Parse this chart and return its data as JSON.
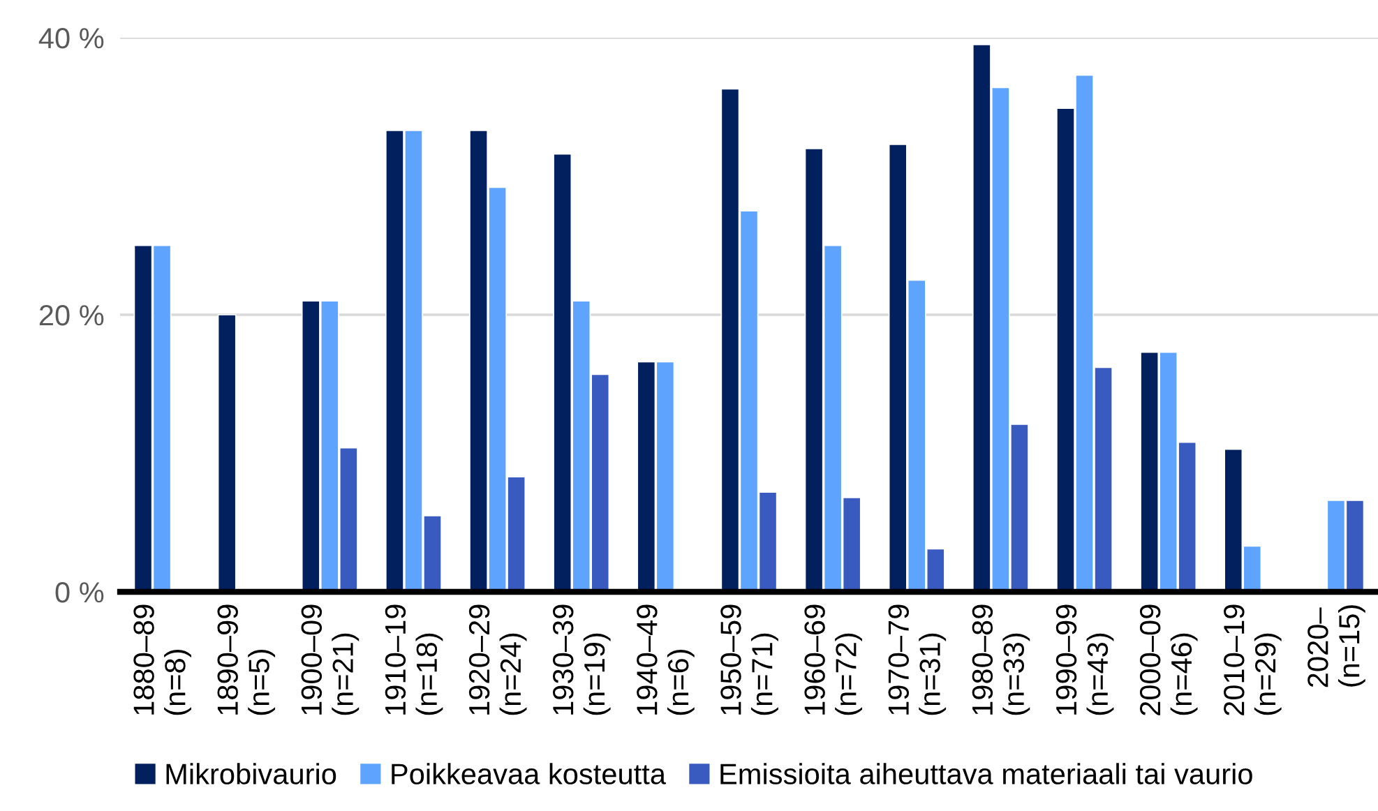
{
  "chart_data": {
    "type": "bar",
    "categories": [
      "1880–89\n(n=8)",
      "1890–99\n(n=5)",
      "1900–09\n(n=21)",
      "1910–19\n(n=18)",
      "1920–29\n(n=24)",
      "1930–39\n(n=19)",
      "1940–49\n(n=6)",
      "1950–59\n(n=71)",
      "1960–69\n(n=72)",
      "1970–79\n(n=31)",
      "1980–89\n(n=33)",
      "1990–99\n(n=43)",
      "2000–09\n(n=46)",
      "2010–19\n(n=29)",
      "2020–\n(n=15)"
    ],
    "series": [
      {
        "name": "Mikrobivaurio",
        "color": "#03205e",
        "values": [
          25,
          20,
          21,
          33.3,
          33.3,
          31.6,
          16.6,
          36.3,
          32,
          32.3,
          39.5,
          34.9,
          17.3,
          10.3,
          null
        ]
      },
      {
        "name": "Poikkeavaa kosteutta",
        "color": "#5ea3fd",
        "values": [
          25,
          null,
          21,
          33.3,
          29.2,
          21,
          16.6,
          27.5,
          25,
          22.5,
          36.4,
          37.3,
          17.3,
          3.3,
          6.6
        ]
      },
      {
        "name": "Emissioita aiheuttava materiaali tai vaurio",
        "color": "#395bbf",
        "values": [
          null,
          null,
          10.4,
          5.5,
          8.3,
          15.7,
          null,
          7.2,
          6.8,
          3.1,
          12.1,
          16.2,
          10.8,
          null,
          6.6
        ]
      }
    ],
    "ylim": [
      0,
      40
    ],
    "yticks": [
      {
        "value": 0,
        "label": "0 %"
      },
      {
        "value": 20,
        "label": "20 %"
      },
      {
        "value": 40,
        "label": "40 %"
      }
    ],
    "grid": "y",
    "legend": "bottom"
  }
}
